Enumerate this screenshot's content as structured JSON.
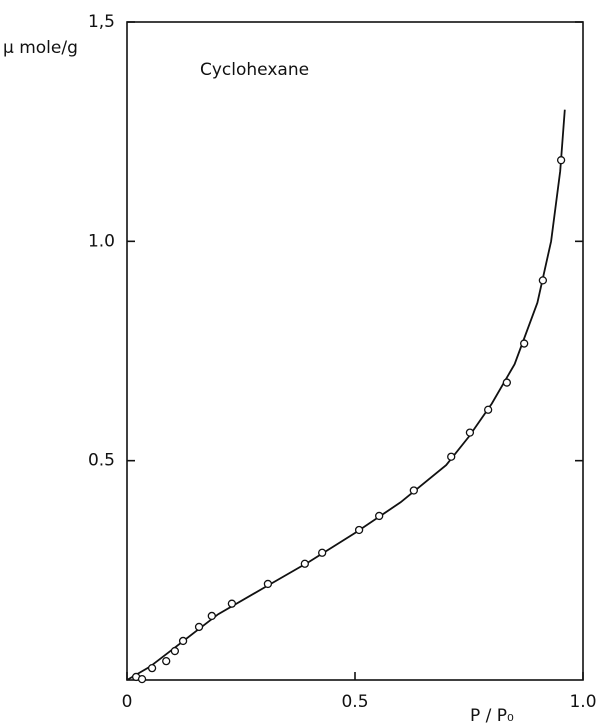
{
  "chart_data": {
    "type": "scatter",
    "annotation": "Cyclohexane",
    "y_label": "μ mole/g",
    "x_label": "P / P₀",
    "x": [
      0.02,
      0.033,
      0.055,
      0.086,
      0.105,
      0.123,
      0.158,
      0.186,
      0.23,
      0.309,
      0.39,
      0.428,
      0.509,
      0.553,
      0.629,
      0.711,
      0.752,
      0.792,
      0.833,
      0.871,
      0.912,
      0.952
    ],
    "values": [
      0.007,
      0.002,
      0.027,
      0.043,
      0.066,
      0.089,
      0.121,
      0.146,
      0.174,
      0.219,
      0.265,
      0.29,
      0.342,
      0.374,
      0.432,
      0.509,
      0.564,
      0.616,
      0.678,
      0.767,
      0.911,
      1.185
    ],
    "curve": {
      "x": [
        0,
        0.05,
        0.1,
        0.15,
        0.2,
        0.3,
        0.4,
        0.5,
        0.6,
        0.7,
        0.75,
        0.8,
        0.85,
        0.9,
        0.93,
        0.95,
        0.96
      ],
      "values": [
        0,
        0.03,
        0.07,
        0.11,
        0.15,
        0.21,
        0.27,
        0.335,
        0.405,
        0.49,
        0.555,
        0.63,
        0.72,
        0.86,
        1.0,
        1.16,
        1.3
      ]
    },
    "color": "#111111",
    "xlim": [
      0,
      1
    ],
    "ylim": [
      0,
      1.5
    ],
    "xticks": [
      0,
      0.5,
      {
        "value": 1,
        "label": "1.0"
      }
    ],
    "yticks": [
      0.5,
      {
        "value": 1,
        "label": "1.0"
      },
      {
        "value": 1.5,
        "label": "1,5"
      }
    ]
  }
}
